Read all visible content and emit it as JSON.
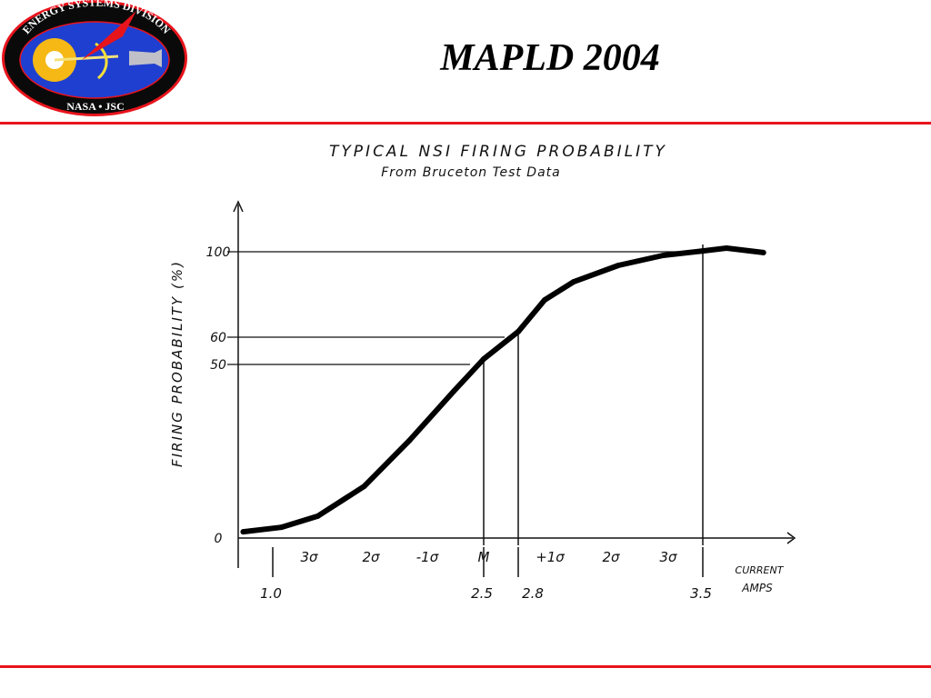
{
  "slide": {
    "title": "MAPLD 2004"
  },
  "logo": {
    "top_text": "ENERGY SYSTEMS DIVISION",
    "bottom_text": "NASA • JSC"
  },
  "colors": {
    "rule": "#e8141c",
    "logo_blue": "#1f3fd0",
    "logo_ring": "#0a0a0a",
    "logo_sun": "#f5b815"
  },
  "chart_data": {
    "type": "line",
    "title": "TYPICAL NSI FIRING PROBABILITY",
    "subtitle": "From Bruceton Test Data",
    "ylabel": "FIRING PROBABILITY (%)",
    "xlabel": [
      "CURRENT",
      "AMPS"
    ],
    "y_ticks": [
      "100",
      "60",
      "50",
      "0"
    ],
    "x_ticks": [
      "1.0",
      "2.5",
      "2.8",
      "3.5"
    ],
    "sigma_labels": [
      "3σ",
      "2σ",
      "-1σ",
      "M",
      "+1σ",
      "2σ",
      "3σ"
    ],
    "ylim": [
      0,
      100
    ],
    "reference_lines": [
      {
        "y": 100,
        "x": 3.5
      },
      {
        "y": 60,
        "x": 2.8
      },
      {
        "y": 50,
        "x": 2.5
      }
    ],
    "series": [
      {
        "x": [
          0.79,
          1.06,
          1.32,
          1.65,
          1.97,
          2.29,
          2.5,
          2.8,
          2.9,
          3.01,
          3.18,
          3.35,
          3.5,
          3.59,
          3.73
        ],
        "y": [
          1.8,
          3.1,
          6.3,
          14.9,
          28,
          42.4,
          52,
          62.6,
          77.4,
          85.9,
          93.6,
          98.3,
          100.4,
          101.7,
          99.6
        ]
      }
    ]
  }
}
